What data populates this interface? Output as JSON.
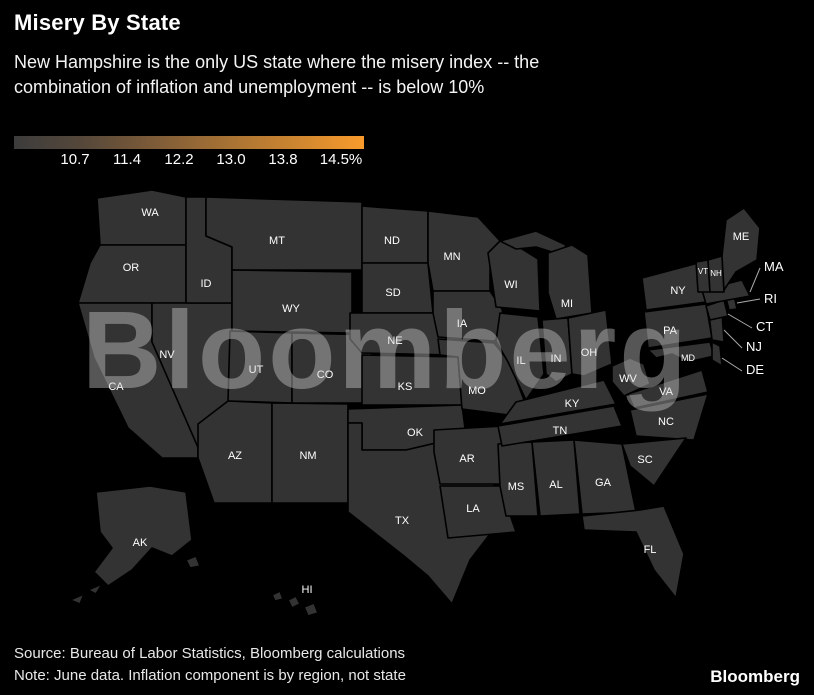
{
  "header": {
    "title": "Misery By State",
    "subtitle_line1": "New Hampshire is the only US state where the misery index -- the",
    "subtitle_line2": "combination of inflation and unemployment -- is below 10%"
  },
  "legend": {
    "tick_labels": [
      "10.7",
      "11.4",
      "12.2",
      "13.0",
      "13.8",
      "14.5%"
    ],
    "colors": [
      "#3c3c3c",
      "#56483a",
      "#7d5b38",
      "#a57134",
      "#cc8530",
      "#f99b2c"
    ]
  },
  "watermark": "Bloomberg",
  "footer": {
    "source": "Source: Bureau of Labor Statistics, Bloomberg calculations",
    "note": "Note: June data. Inflation component is by region, not state",
    "brand": "Bloomberg"
  },
  "chart_data": {
    "type": "choropleth-map",
    "title": "Misery By State",
    "metric": "misery index (inflation + unemployment)",
    "legend_ticks": [
      10.7,
      11.4,
      12.2,
      13.0,
      13.8,
      14.5
    ],
    "legend_unit": "%",
    "legend_colors": [
      "#3c3c3c",
      "#56483a",
      "#7d5b38",
      "#a57134",
      "#cc8530",
      "#f99b2c"
    ],
    "callouts": [
      {
        "label": "MA"
      },
      {
        "label": "RI"
      },
      {
        "label": "CT"
      },
      {
        "label": "NJ"
      },
      {
        "label": "DE"
      }
    ],
    "states": [
      {
        "abbr": "WA",
        "color": "#a06d33"
      },
      {
        "abbr": "OR",
        "color": "#7d5a37"
      },
      {
        "abbr": "CA",
        "color": "#aa7233"
      },
      {
        "abbr": "NV",
        "color": "#f89a2c"
      },
      {
        "abbr": "ID",
        "color": "#a06d33"
      },
      {
        "abbr": "MT",
        "color": "#a57134"
      },
      {
        "abbr": "WY",
        "color": "#b87c2f"
      },
      {
        "abbr": "UT",
        "color": "#4e4439"
      },
      {
        "abbr": "CO",
        "color": "#8f6433"
      },
      {
        "abbr": "AZ",
        "color": "#c8842f"
      },
      {
        "abbr": "NM",
        "color": "#f89a2c"
      },
      {
        "abbr": "ND",
        "color": "#564a3e"
      },
      {
        "abbr": "SD",
        "color": "#5c4c3c"
      },
      {
        "abbr": "NE",
        "color": "#4a443d"
      },
      {
        "abbr": "KS",
        "color": "#433f3b"
      },
      {
        "abbr": "OK",
        "color": "#c8842f"
      },
      {
        "abbr": "TX",
        "color": "#f89a2c"
      },
      {
        "abbr": "MN",
        "color": "#373737"
      },
      {
        "abbr": "IA",
        "color": "#4b4b4b"
      },
      {
        "abbr": "MO",
        "color": "#5f4d3b"
      },
      {
        "abbr": "AR",
        "color": "#c8842f"
      },
      {
        "abbr": "LA",
        "color": "#c08030"
      },
      {
        "abbr": "MS",
        "color": "#6b543c"
      },
      {
        "abbr": "AL",
        "color": "#3d3d3d"
      },
      {
        "abbr": "GA",
        "color": "#8a6136"
      },
      {
        "abbr": "FL",
        "color": "#a26e33"
      },
      {
        "abbr": "SC",
        "color": "#b87c2f"
      },
      {
        "abbr": "NC",
        "color": "#a87233"
      },
      {
        "abbr": "TN",
        "color": "#5c4b3a"
      },
      {
        "abbr": "KY",
        "color": "#5f4d3b"
      },
      {
        "abbr": "WV",
        "color": "#b87c2f"
      },
      {
        "abbr": "VA",
        "color": "#7d5a37"
      },
      {
        "abbr": "OH",
        "color": "#5f4d3b"
      },
      {
        "abbr": "IN",
        "color": "#56483a"
      },
      {
        "abbr": "IL",
        "color": "#cc8530"
      },
      {
        "abbr": "WI",
        "color": "#cc8530"
      },
      {
        "abbr": "MI",
        "color": "#f89a2c"
      },
      {
        "abbr": "NY",
        "color": "#7d5a37"
      },
      {
        "abbr": "PA",
        "color": "#86603a"
      },
      {
        "abbr": "MD",
        "color": "#e68d28"
      },
      {
        "abbr": "DE",
        "color": "#564a3e"
      },
      {
        "abbr": "NJ",
        "color": "#5c4e40"
      },
      {
        "abbr": "CT",
        "color": "#4e463c"
      },
      {
        "abbr": "RI",
        "color": "#7d5a37"
      },
      {
        "abbr": "MA",
        "color": "#4a443c"
      },
      {
        "abbr": "VT",
        "color": "#565656"
      },
      {
        "abbr": "NH",
        "color": "#484848"
      },
      {
        "abbr": "ME",
        "color": "#7d5a37"
      },
      {
        "abbr": "AK",
        "color": "#8a6136"
      },
      {
        "abbr": "HI",
        "color": "#a87233"
      }
    ]
  }
}
